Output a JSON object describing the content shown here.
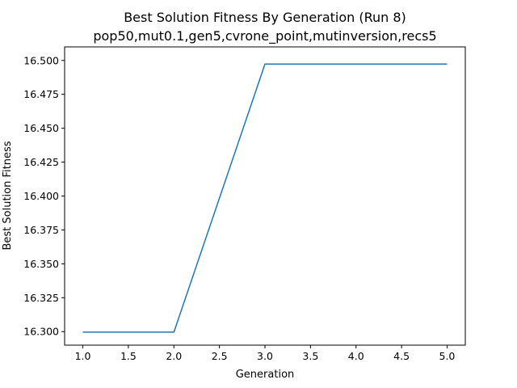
{
  "chart_data": {
    "type": "line",
    "title": "Best Solution Fitness By Generation (Run 8)",
    "subtitle": "pop50,mut0.1,gen5,cvrone_point,mutinversion,recs5",
    "xlabel": "Generation",
    "ylabel": "Best Solution Fitness",
    "xlim": [
      0.8,
      5.2
    ],
    "ylim": [
      16.29,
      16.51
    ],
    "x_ticks": [
      "1.0",
      "1.5",
      "2.0",
      "2.5",
      "3.0",
      "3.5",
      "4.0",
      "4.5",
      "5.0"
    ],
    "y_ticks": [
      "16.300",
      "16.325",
      "16.350",
      "16.375",
      "16.400",
      "16.425",
      "16.450",
      "16.475",
      "16.500"
    ],
    "grid": false,
    "series": [
      {
        "x": [
          1,
          2,
          3,
          4,
          5
        ],
        "y": [
          16.2996,
          16.2996,
          16.4973,
          16.4973,
          16.4973
        ],
        "color": "#1f77b4"
      }
    ]
  }
}
